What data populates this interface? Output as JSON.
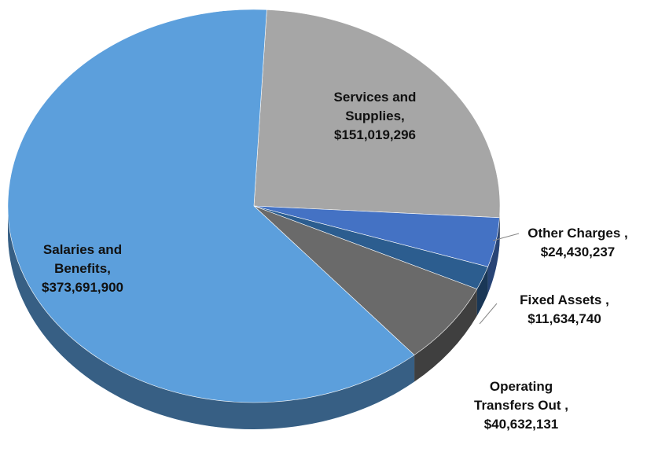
{
  "chart_data": {
    "type": "pie",
    "categories": [
      "Services and Supplies,",
      "Other Charges ,",
      "Fixed Assets ,",
      "Operating Transfers Out ,",
      "Salaries and Benefits,"
    ],
    "values": [
      151019296,
      24430237,
      11634740,
      40632131,
      373691900
    ],
    "value_labels": [
      "$151,019,296",
      "$24,430,237",
      "$11,634,740",
      "$40,632,131",
      "$373,691,900"
    ],
    "colors": [
      "#a6a6a6",
      "#4472c4",
      "#2c5d8f",
      "#6a6a6a",
      "#5c9fdc"
    ]
  }
}
